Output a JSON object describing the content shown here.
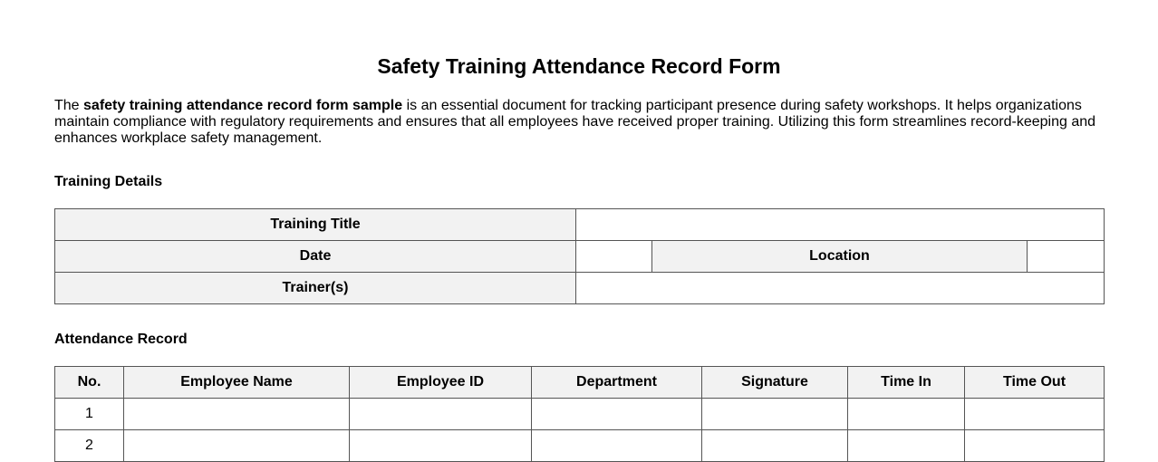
{
  "title": "Safety Training Attendance Record Form",
  "intro": {
    "prefix": "The ",
    "bold": "safety training attendance record form sample",
    "suffix": " is an essential document for tracking participant presence during safety workshops. It helps organizations maintain compliance with regulatory requirements and ensures that all employees have received proper training. Utilizing this form streamlines record-keeping and enhances workplace safety management."
  },
  "training_details": {
    "heading": "Training Details",
    "training_title_label": "Training Title",
    "date_label": "Date",
    "location_label": "Location",
    "trainers_label": "Trainer(s)"
  },
  "attendance": {
    "heading": "Attendance Record",
    "columns": [
      "No.",
      "Employee Name",
      "Employee ID",
      "Department",
      "Signature",
      "Time In",
      "Time Out"
    ],
    "rows": [
      "1",
      "2"
    ]
  }
}
